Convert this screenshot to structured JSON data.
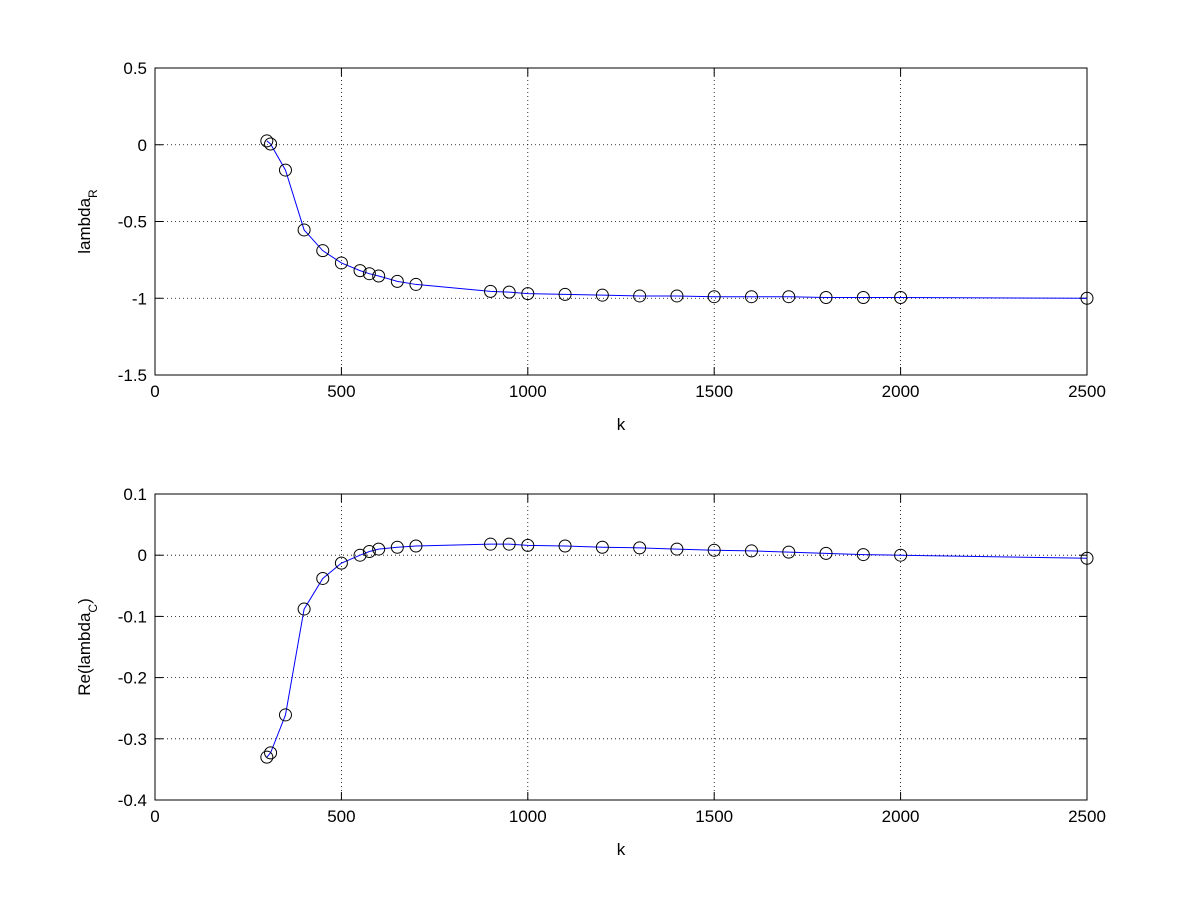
{
  "chart_data": [
    {
      "type": "line",
      "x": [
        300,
        310,
        350,
        400,
        450,
        500,
        550,
        575,
        600,
        650,
        700,
        900,
        950,
        1000,
        1100,
        1200,
        1300,
        1400,
        1500,
        1600,
        1700,
        1800,
        1900,
        2000,
        2500
      ],
      "values": [
        0.025,
        0.005,
        -0.165,
        -0.555,
        -0.69,
        -0.77,
        -0.82,
        -0.84,
        -0.855,
        -0.89,
        -0.91,
        -0.955,
        -0.96,
        -0.97,
        -0.975,
        -0.98,
        -0.985,
        -0.985,
        -0.99,
        -0.99,
        -0.99,
        -0.995,
        -0.995,
        -0.995,
        -1.0
      ],
      "color": "#0000ff",
      "marker": "circle",
      "marker_color": "#000000",
      "xlim": [
        0,
        2500
      ],
      "xticks": [
        0,
        500,
        1000,
        1500,
        2000,
        2500
      ],
      "ylim": [
        -1.5,
        0.5
      ],
      "yticks": [
        -1.5,
        -1,
        -0.5,
        0,
        0.5
      ],
      "grid": true,
      "xlabel": "k",
      "ylabel": [
        {
          "text": "lambda"
        },
        {
          "text": "R",
          "sub": true
        }
      ]
    },
    {
      "type": "line",
      "x": [
        300,
        310,
        350,
        400,
        450,
        500,
        550,
        575,
        600,
        650,
        700,
        900,
        950,
        1000,
        1100,
        1200,
        1300,
        1400,
        1500,
        1600,
        1700,
        1800,
        1900,
        2000,
        2500
      ],
      "values": [
        -0.33,
        -0.323,
        -0.261,
        -0.088,
        -0.038,
        -0.013,
        0.0,
        0.006,
        0.01,
        0.013,
        0.015,
        0.018,
        0.018,
        0.016,
        0.015,
        0.013,
        0.012,
        0.01,
        0.008,
        0.007,
        0.005,
        0.003,
        0.001,
        0.0,
        -0.005
      ],
      "color": "#0000ff",
      "marker": "circle",
      "marker_color": "#000000",
      "xlim": [
        0,
        2500
      ],
      "xticks": [
        0,
        500,
        1000,
        1500,
        2000,
        2500
      ],
      "ylim": [
        -0.4,
        0.1
      ],
      "yticks": [
        -0.4,
        -0.3,
        -0.2,
        -0.1,
        0,
        0.1
      ],
      "grid": true,
      "xlabel": "k",
      "ylabel": [
        {
          "text": "Re(lambda"
        },
        {
          "text": "C",
          "sub": true
        },
        {
          "text": ")"
        }
      ]
    }
  ]
}
